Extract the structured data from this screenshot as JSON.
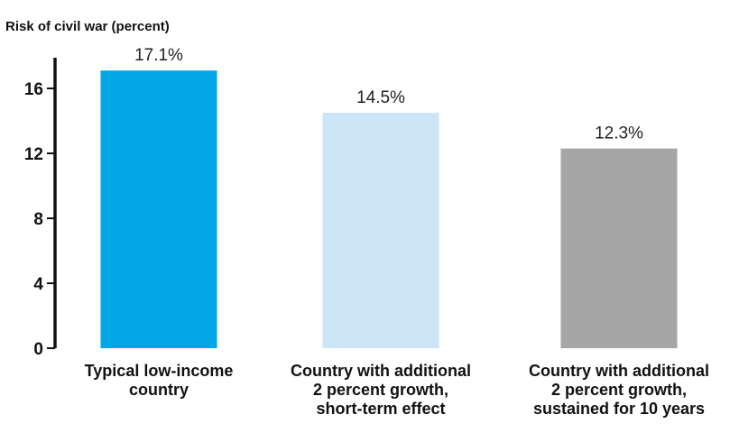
{
  "chart_data": {
    "type": "bar",
    "title": "",
    "ylabel": "Risk of civil war (percent)",
    "xlabel": "",
    "ylim": [
      0,
      18
    ],
    "yticks": [
      0,
      4,
      8,
      12,
      16
    ],
    "grid": false,
    "legend": "none",
    "categories": [
      [
        "Typical low-income",
        "country"
      ],
      [
        "Country with additional",
        "2 percent growth,",
        "short-term effect"
      ],
      [
        "Country with additional",
        "2 percent growth,",
        "sustained for 10 years"
      ]
    ],
    "values": [
      17.1,
      14.5,
      12.3
    ],
    "value_labels": [
      "17.1%",
      "14.5%",
      "12.3%"
    ],
    "colors": [
      "#00a6e6",
      "#cce6f7",
      "#a6a6a6"
    ],
    "axis_color": "#111111"
  }
}
